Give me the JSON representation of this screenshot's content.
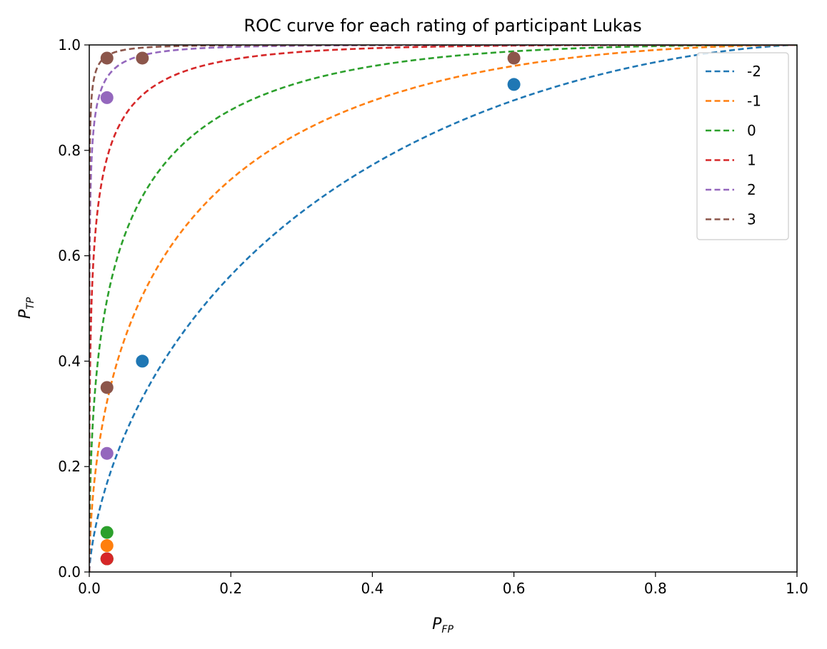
{
  "chart_data": {
    "type": "line",
    "title": "ROC curve for each rating of participant Lukas",
    "xlabel": {
      "main": "P",
      "sub": "FP"
    },
    "ylabel": {
      "main": "P",
      "sub": "TP"
    },
    "xlim": [
      0.0,
      1.0
    ],
    "ylim": [
      0.0,
      1.0
    ],
    "xticks": [
      "0.0",
      "0.2",
      "0.4",
      "0.6",
      "0.8",
      "1.0"
    ],
    "yticks": [
      "0.0",
      "0.2",
      "0.4",
      "0.6",
      "0.8",
      "1.0"
    ],
    "grid": false,
    "legend_position": "top-right",
    "line_style": "dashed",
    "series": [
      {
        "name": "-2",
        "color": "#1f77b4",
        "dprime": 1.0,
        "points": [
          [
            0.075,
            0.4
          ],
          [
            0.6,
            0.925
          ],
          [
            0.025,
            0.025
          ]
        ]
      },
      {
        "name": "-1",
        "color": "#ff7f0e",
        "dprime": 1.5,
        "points": [
          [
            0.025,
            0.05
          ],
          [
            0.025,
            0.025
          ]
        ]
      },
      {
        "name": "0",
        "color": "#2ca02c",
        "dprime": 2.0,
        "points": [
          [
            0.025,
            0.075
          ],
          [
            0.025,
            0.025
          ]
        ]
      },
      {
        "name": "1",
        "color": "#d62728",
        "dprime": 2.75,
        "points": [
          [
            0.025,
            0.025
          ]
        ]
      },
      {
        "name": "2",
        "color": "#9467bd",
        "dprime": 3.5,
        "points": [
          [
            0.025,
            0.9
          ],
          [
            0.025,
            0.225
          ]
        ]
      },
      {
        "name": "3",
        "color": "#8c564b",
        "dprime": 4.0,
        "points": [
          [
            0.025,
            0.975
          ],
          [
            0.075,
            0.975
          ],
          [
            0.6,
            0.975
          ],
          [
            0.025,
            0.35
          ]
        ]
      }
    ]
  }
}
